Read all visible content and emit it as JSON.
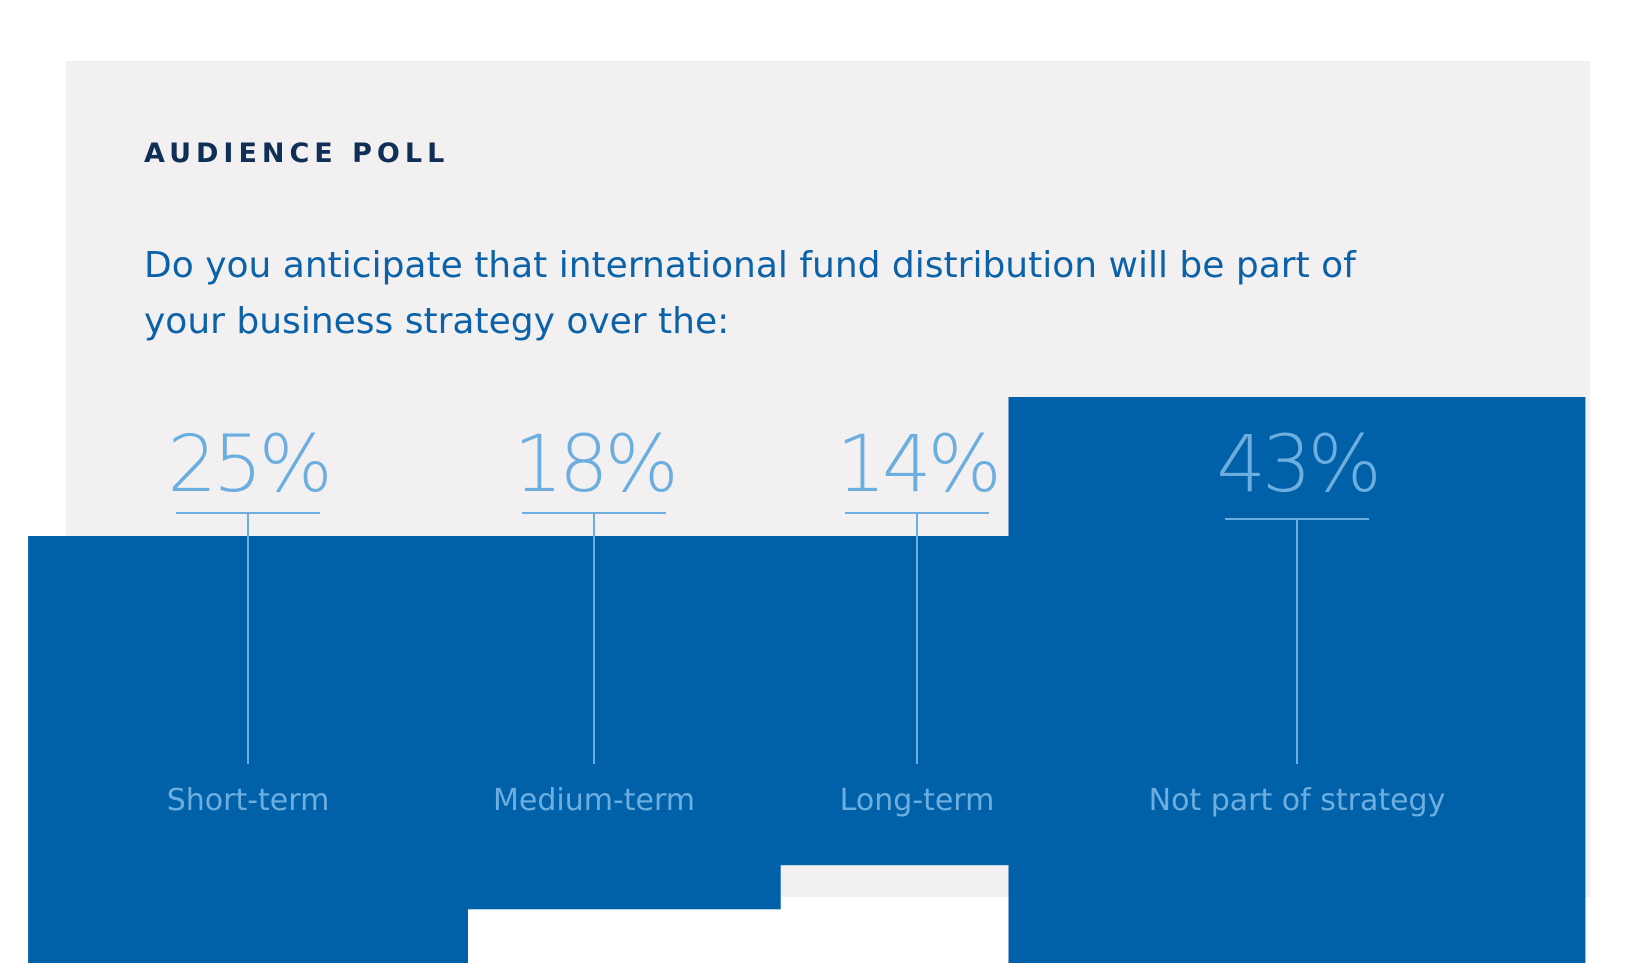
{
  "header": {
    "kicker": "AUDIENCE POLL",
    "question": "Do you anticipate that international fund distribution will be part of your business strategy over the:"
  },
  "colors": {
    "panel_background": "#f2f0f1",
    "kicker_text": "#0f2f57",
    "question_text": "#0b62a8",
    "square_fill": "#0061a8",
    "accent_light": "#6caedf"
  },
  "chart_data": {
    "type": "bar",
    "shape": "proportional-squares",
    "categories": [
      "Short-term",
      "Medium-term",
      "Long-term",
      "Not part of strategy"
    ],
    "values": [
      25,
      18,
      14,
      43
    ],
    "value_labels": [
      "25%",
      "18%",
      "14%",
      "43%"
    ],
    "unit": "%",
    "legend": "none",
    "grid": false
  }
}
